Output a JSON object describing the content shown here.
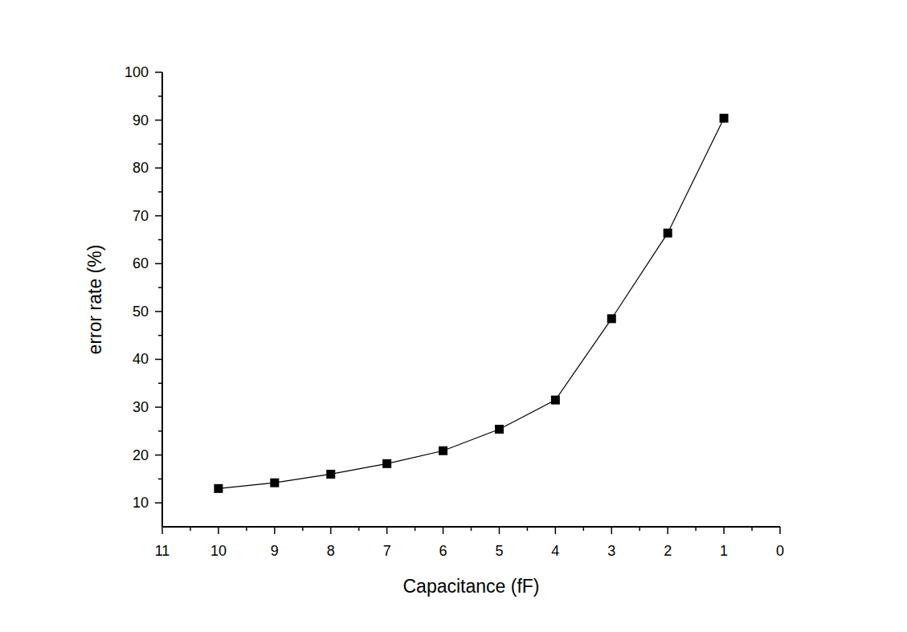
{
  "chart_data": {
    "type": "line",
    "x_label": "Capacitance (fF)",
    "y_label": "error rate (%)",
    "x": [
      10,
      9,
      8,
      7,
      6,
      5,
      4,
      3,
      2,
      1
    ],
    "values": [
      13.0,
      14.2,
      16.0,
      18.2,
      20.9,
      25.4,
      31.5,
      48.5,
      66.4,
      90.4
    ],
    "color": "#000000",
    "marker": "square",
    "line_style": "solid",
    "xlim": [
      11,
      0
    ],
    "xticks": [
      11,
      10,
      9,
      8,
      7,
      6,
      5,
      4,
      3,
      2,
      1,
      0
    ],
    "ylim": [
      5,
      100
    ],
    "yticks": [
      10,
      20,
      30,
      40,
      50,
      60,
      70,
      80,
      90,
      100
    ],
    "grid": false
  }
}
